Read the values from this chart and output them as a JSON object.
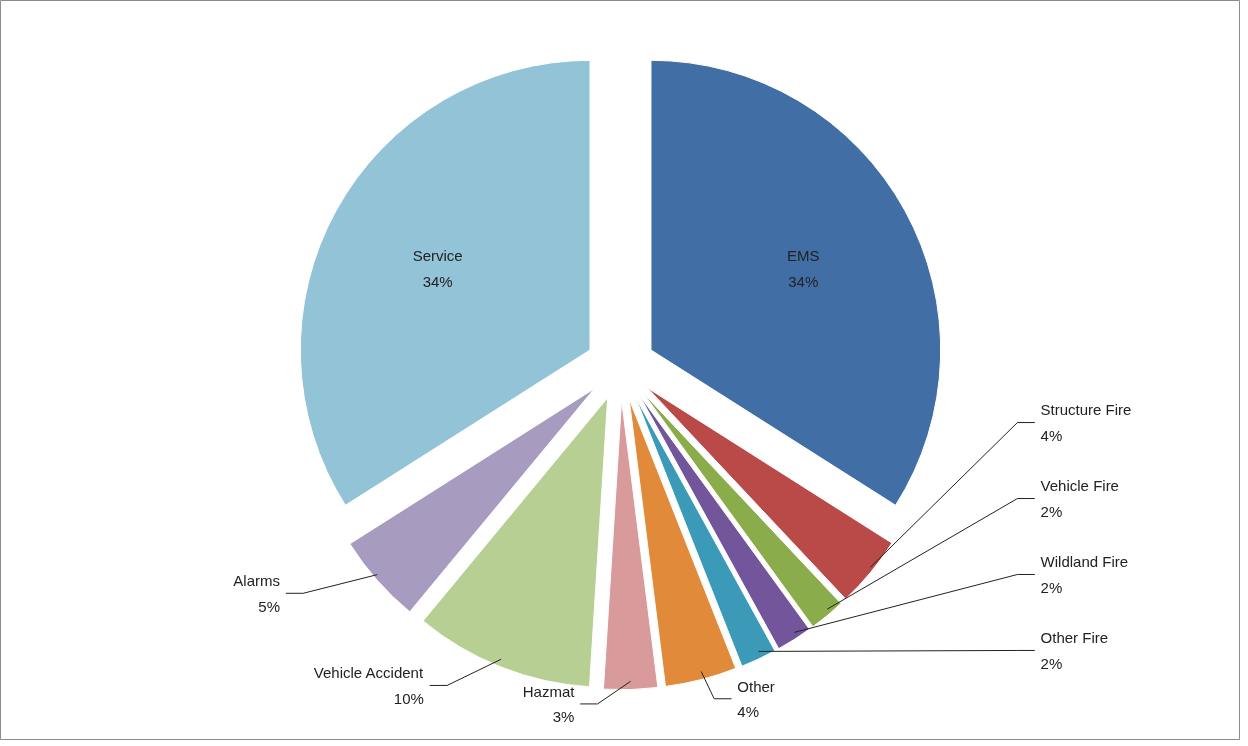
{
  "chart_data": {
    "type": "pie",
    "categories": [
      "EMS",
      "Structure Fire",
      "Vehicle Fire",
      "Wildland Fire",
      "Other Fire",
      "Other",
      "Hazmat",
      "Vehicle Accident",
      "Alarms",
      "Service"
    ],
    "values": [
      34,
      4,
      2,
      2,
      2,
      4,
      3,
      10,
      5,
      34
    ],
    "colors": [
      "#416ea4",
      "#b94a48",
      "#8aac4a",
      "#72559a",
      "#3b9ab8",
      "#e08a3a",
      "#d89a9a",
      "#b8cf94",
      "#a89bc0",
      "#93c3d6"
    ],
    "value_labels": [
      "34%",
      "4%",
      "2%",
      "2%",
      "2%",
      "4%",
      "3%",
      "10%",
      "5%",
      "34%"
    ]
  }
}
